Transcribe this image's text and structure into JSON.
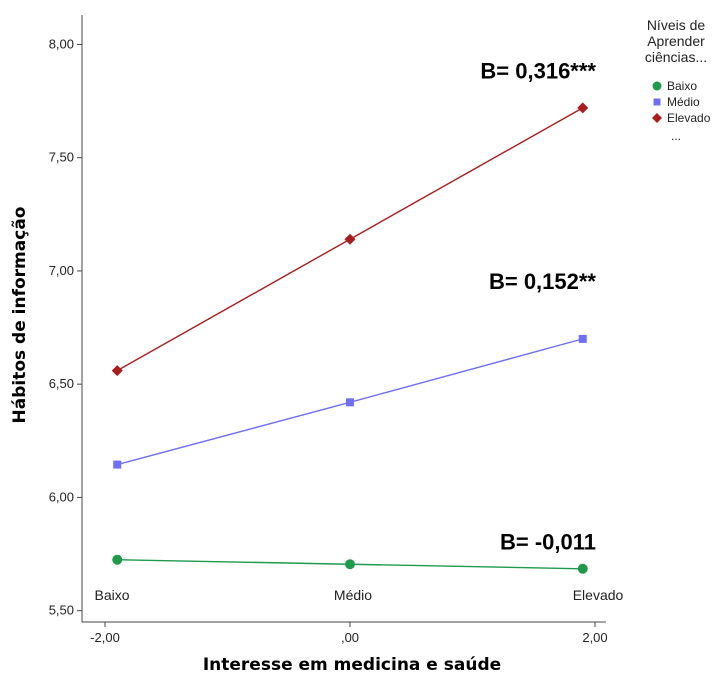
{
  "chart_data": {
    "type": "line",
    "xlabel": "Interesse em medicina e saúde",
    "ylabel": "Hábitos de informação",
    "x": [
      -1.9,
      0.0,
      1.9
    ],
    "xlim": [
      -2.25,
      2.25
    ],
    "ylim": [
      5.45,
      8.13
    ],
    "x_ticks": [
      {
        "value": -2.0,
        "label": "-2,00"
      },
      {
        "value": 0.0,
        "label": ",00"
      },
      {
        "value": 2.0,
        "label": "2,00"
      }
    ],
    "y_ticks": [
      {
        "value": 5.5,
        "label": "5,50"
      },
      {
        "value": 6.0,
        "label": "6,00"
      },
      {
        "value": 6.5,
        "label": "6,50"
      },
      {
        "value": 7.0,
        "label": "7,00"
      },
      {
        "value": 7.5,
        "label": "7,50"
      },
      {
        "value": 8.0,
        "label": "8,00"
      }
    ],
    "category_labels": [
      "Baixo",
      "Médio",
      "Elevado"
    ],
    "series": [
      {
        "name": "Baixo",
        "color": "#1f9a4a",
        "marker": "circle",
        "values": [
          5.725,
          5.705,
          5.685
        ]
      },
      {
        "name": "Médio",
        "color": "#6f6ff5",
        "marker": "square",
        "values": [
          6.145,
          6.42,
          6.7
        ]
      },
      {
        "name": "Elevado",
        "color": "#a91d1d",
        "marker": "diamond",
        "values": [
          6.56,
          7.14,
          7.72
        ]
      }
    ],
    "annotations": [
      {
        "text": "B= 0,316***",
        "x": 1.9,
        "y": 7.85
      },
      {
        "text": "B= 0,152**",
        "x": 1.9,
        "y": 6.92
      },
      {
        "text": "B= -0,011",
        "x": 1.9,
        "y": 5.77
      }
    ],
    "legend": {
      "position": "top-right",
      "title": [
        "Níveis de",
        "Aprender",
        "ciências..."
      ],
      "trailing": "..."
    },
    "grid": false
  }
}
